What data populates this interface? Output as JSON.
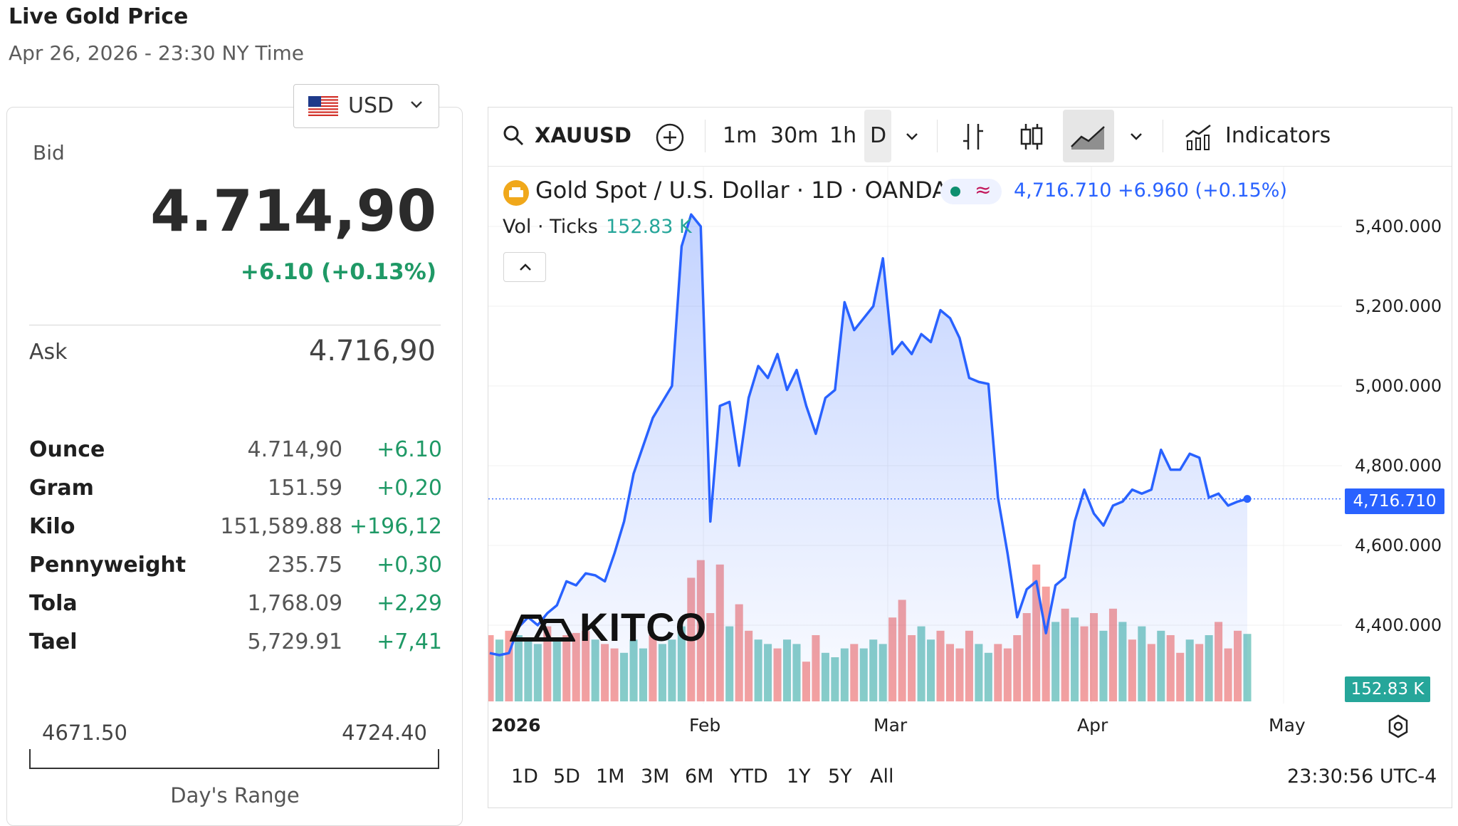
{
  "header": {
    "title": "Live Gold Price",
    "subtitle": "Apr 26, 2026 - 23:30 NY Time"
  },
  "currency": {
    "code": "USD",
    "flag": "us-flag-icon"
  },
  "quote": {
    "bid_label": "Bid",
    "bid_value": "4.714,90",
    "bid_change": "+6.10 (+0.13%)",
    "ask_label": "Ask",
    "ask_value": "4.716,90"
  },
  "units": [
    {
      "unit": "Ounce",
      "price": "4.714,90",
      "change": "+6.10"
    },
    {
      "unit": "Gram",
      "price": "151.59",
      "change": "+0,20"
    },
    {
      "unit": "Kilo",
      "price": "151,589.88",
      "change": "+196,12"
    },
    {
      "unit": "Pennyweight",
      "price": "235.75",
      "change": "+0,30"
    },
    {
      "unit": "Tola",
      "price": "1,768.09",
      "change": "+2,29"
    },
    {
      "unit": "Tael",
      "price": "5,729.91",
      "change": "+7,41"
    }
  ],
  "day_range": {
    "low": "4671.50",
    "high": "4724.40",
    "caption": "Day's Range"
  },
  "toolbar": {
    "symbol": "XAUUSD",
    "timeframes": [
      "1m",
      "30m",
      "1h",
      "D"
    ],
    "active_timeframe": "D",
    "indicators_label": "Indicators"
  },
  "legend": {
    "title": "Gold Spot / U.S. Dollar · 1D · OANDA",
    "last": "4,716.710",
    "change": "+6.960",
    "change_pct": "(+0.15%)",
    "vol_label": "Vol · Ticks",
    "vol_value": "152.83 K"
  },
  "watermark": "KITCO",
  "price_tag": "4,716.710",
  "vol_tag": "152.83 K",
  "range_buttons": [
    "1D",
    "5D",
    "1M",
    "3M",
    "6M",
    "YTD",
    "1Y",
    "5Y",
    "All"
  ],
  "clock": "23:30:56 UTC-4",
  "colors": {
    "line": "#2962ff",
    "vol_up": "#26a69a",
    "vol_down": "#ef5350",
    "change_positive": "#1f9966"
  },
  "chart_data": {
    "type": "area",
    "title": "Gold Spot / U.S. Dollar · 1D · OANDA",
    "y_axis_ticks": [
      "5,400.000",
      "5,200.000",
      "5,000.000",
      "4,800.000",
      "4,600.000",
      "4,400.000"
    ],
    "ylim": [
      4300,
      5450
    ],
    "x_axis_ticks": [
      "2026",
      "Feb",
      "Mar",
      "Apr",
      "May"
    ],
    "series": [
      {
        "values": [
          4330,
          4325,
          4330,
          4395,
          4420,
          4400,
          4430,
          4450,
          4510,
          4500,
          4530,
          4525,
          4510,
          4580,
          4660,
          4780,
          4850,
          4920,
          4960,
          5000,
          5350,
          5430,
          5400,
          4660,
          4950,
          4960,
          4800,
          4970,
          5050,
          5020,
          5080,
          4990,
          5040,
          4950,
          4880,
          4970,
          4990,
          5210,
          5140,
          5170,
          5200,
          5320,
          5080,
          5110,
          5080,
          5130,
          5110,
          5190,
          5170,
          5120,
          5020,
          5010,
          5005,
          4720,
          4580,
          4420,
          4490,
          4510,
          4380,
          4500,
          4520,
          4660,
          4740,
          4680,
          4650,
          4700,
          4710,
          4740,
          4730,
          4740,
          4840,
          4790,
          4790,
          4830,
          4820,
          4720,
          4730,
          4700,
          4710,
          4716.71
        ]
      },
      {
        "name": "Vol · Ticks",
        "values_k": [
          150,
          140,
          160,
          150,
          140,
          130,
          170,
          145,
          150,
          155,
          160,
          140,
          130,
          120,
          110,
          140,
          120,
          150,
          130,
          140,
          170,
          280,
          320,
          200,
          310,
          170,
          220,
          160,
          140,
          130,
          120,
          140,
          130,
          90,
          150,
          110,
          100,
          120,
          130,
          120,
          140,
          130,
          190,
          230,
          150,
          170,
          140,
          160,
          130,
          120,
          160,
          130,
          110,
          130,
          120,
          150,
          200,
          310,
          260,
          180,
          210,
          190,
          170,
          200,
          160,
          210,
          180,
          140,
          170,
          130,
          160,
          150,
          110,
          140,
          130,
          150,
          180,
          120,
          160,
          152.83
        ],
        "down": [
          1,
          0,
          1,
          0,
          0,
          0,
          1,
          0,
          1,
          1,
          1,
          0,
          1,
          1,
          0,
          0,
          0,
          1,
          0,
          0,
          0,
          1,
          1,
          1,
          1,
          0,
          1,
          1,
          0,
          0,
          1,
          0,
          0,
          1,
          1,
          0,
          0,
          0,
          1,
          0,
          0,
          0,
          1,
          1,
          1,
          0,
          0,
          1,
          1,
          1,
          1,
          0,
          0,
          1,
          1,
          1,
          1,
          1,
          1,
          0,
          1,
          0,
          1,
          1,
          0,
          1,
          0,
          1,
          0,
          1,
          0,
          1,
          1,
          0,
          1,
          0,
          1,
          1,
          1,
          0
        ]
      }
    ],
    "last_price": 4716.71,
    "last_volume": "152.83 K"
  }
}
